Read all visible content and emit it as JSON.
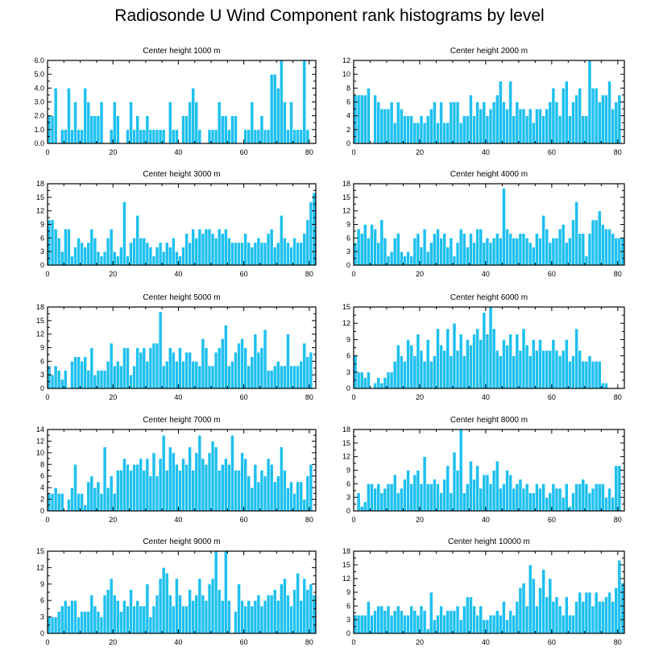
{
  "title": "Radiosonde U Wind Component rank histograms by level",
  "colors": {
    "bar": "#1ec0f0",
    "axis": "#000000"
  },
  "chart_data": [
    {
      "type": "bar",
      "title": "Center height 1000 m",
      "xlim": [
        0,
        82
      ],
      "ylim": [
        0,
        6
      ],
      "xticks": [
        "0",
        "20",
        "40",
        "60",
        "80"
      ],
      "yticks": [
        "0.0",
        "1.0",
        "2.0",
        "3.0",
        "4.0",
        "5.0",
        "6.0"
      ],
      "values": [
        2,
        2,
        4,
        0,
        1,
        1,
        4,
        1,
        3,
        1,
        1,
        4,
        3,
        2,
        2,
        2,
        3,
        0,
        0,
        1,
        3,
        2,
        0,
        0,
        1,
        3,
        1,
        2,
        1,
        1,
        2,
        1,
        1,
        1,
        1,
        1,
        0,
        3,
        1,
        1,
        0,
        2,
        2,
        3,
        4,
        3,
        1,
        0,
        0,
        1,
        1,
        1,
        3,
        2,
        2,
        1,
        2,
        2,
        0,
        0,
        1,
        1,
        3,
        1,
        1,
        2,
        1,
        1,
        5,
        5,
        4,
        6,
        3,
        1,
        3,
        1,
        1,
        1,
        6,
        1,
        0
      ]
    },
    {
      "type": "bar",
      "title": "Center height 2000 m",
      "xlim": [
        0,
        82
      ],
      "ylim": [
        0,
        12
      ],
      "xticks": [
        "0",
        "20",
        "40",
        "60",
        "80"
      ],
      "yticks": [
        "0",
        "2",
        "4",
        "6",
        "8",
        "10",
        "12"
      ],
      "values": [
        7,
        7,
        7,
        7,
        8,
        0,
        7,
        6,
        5,
        5,
        5,
        6,
        3,
        6,
        5,
        4,
        4,
        4,
        3,
        3,
        4,
        3,
        4,
        5,
        6,
        3,
        6,
        3,
        3,
        6,
        6,
        6,
        3,
        4,
        4,
        7,
        4,
        6,
        5,
        6,
        4,
        5,
        6,
        7,
        9,
        6,
        5,
        9,
        4,
        6,
        5,
        5,
        4,
        5,
        3,
        5,
        5,
        4,
        5,
        6,
        8,
        6,
        4,
        8,
        9,
        4,
        6,
        7,
        8,
        4,
        4,
        12,
        8,
        8,
        6,
        7,
        7,
        9,
        5,
        6,
        7
      ]
    },
    {
      "type": "bar",
      "title": "Center height 3000 m",
      "xlim": [
        0,
        82
      ],
      "ylim": [
        0,
        18
      ],
      "xticks": [
        "0",
        "20",
        "40",
        "60",
        "80"
      ],
      "yticks": [
        "0",
        "3",
        "6",
        "9",
        "12",
        "15",
        "18"
      ],
      "values": [
        10,
        10,
        8,
        6,
        3,
        8,
        8,
        2,
        4,
        6,
        5,
        4,
        5,
        8,
        6,
        3,
        2,
        3,
        6,
        8,
        3,
        2,
        4,
        14,
        2,
        5,
        6,
        11,
        6,
        6,
        5,
        4,
        2,
        4,
        5,
        3,
        5,
        4,
        6,
        3,
        2,
        4,
        7,
        5,
        8,
        6,
        8,
        7,
        8,
        8,
        7,
        6,
        8,
        7,
        8,
        6,
        5,
        5,
        5,
        5,
        7,
        5,
        4,
        5,
        6,
        5,
        5,
        7,
        8,
        4,
        5,
        11,
        6,
        5,
        4,
        6,
        5,
        5,
        7,
        10,
        14,
        16
      ]
    },
    {
      "type": "bar",
      "title": "Center height 4000 m",
      "xlim": [
        0,
        82
      ],
      "ylim": [
        0,
        18
      ],
      "xticks": [
        "0",
        "20",
        "40",
        "60",
        "80"
      ],
      "yticks": [
        "0",
        "3",
        "6",
        "9",
        "12",
        "15",
        "18"
      ],
      "values": [
        5,
        8,
        7,
        9,
        6,
        9,
        8,
        5,
        10,
        6,
        2,
        3,
        6,
        7,
        3,
        2,
        3,
        2,
        6,
        7,
        4,
        8,
        3,
        5,
        7,
        8,
        6,
        7,
        4,
        6,
        2,
        5,
        8,
        7,
        4,
        7,
        5,
        8,
        8,
        5,
        6,
        5,
        6,
        7,
        6,
        17,
        8,
        7,
        6,
        6,
        7,
        7,
        6,
        5,
        4,
        7,
        6,
        11,
        8,
        5,
        6,
        6,
        8,
        9,
        5,
        6,
        10,
        14,
        7,
        7,
        2,
        7,
        10,
        10,
        12,
        9,
        8,
        8,
        7,
        6,
        6,
        6
      ]
    },
    {
      "type": "bar",
      "title": "Center height 5000 m",
      "xlim": [
        0,
        82
      ],
      "ylim": [
        0,
        18
      ],
      "xticks": [
        "0",
        "20",
        "40",
        "60",
        "80"
      ],
      "yticks": [
        "0",
        "3",
        "6",
        "9",
        "12",
        "15",
        "18"
      ],
      "values": [
        5,
        3,
        5,
        4,
        2,
        4,
        0,
        6,
        7,
        7,
        6,
        7,
        4,
        9,
        3,
        4,
        4,
        4,
        6,
        10,
        5,
        6,
        5,
        9,
        9,
        3,
        5,
        9,
        8,
        9,
        6,
        9,
        10,
        10,
        17,
        5,
        6,
        9,
        8,
        6,
        9,
        6,
        8,
        8,
        6,
        6,
        5,
        11,
        9,
        5,
        5,
        8,
        9,
        11,
        14,
        5,
        6,
        8,
        10,
        11,
        9,
        5,
        7,
        12,
        8,
        9,
        13,
        4,
        4,
        5,
        6,
        5,
        5,
        12,
        5,
        5,
        5,
        6,
        10,
        7,
        8
      ]
    },
    {
      "type": "bar",
      "title": "Center height 6000 m",
      "xlim": [
        0,
        82
      ],
      "ylim": [
        0,
        15
      ],
      "xticks": [
        "0",
        "20",
        "40",
        "60",
        "80"
      ],
      "yticks": [
        "0",
        "3",
        "6",
        "9",
        "12",
        "15"
      ],
      "values": [
        6,
        3,
        3,
        2,
        3,
        0,
        1,
        2,
        1,
        2,
        3,
        3,
        5,
        8,
        6,
        5,
        9,
        8,
        6,
        10,
        7,
        5,
        9,
        5,
        6,
        11,
        8,
        7,
        11,
        6,
        12,
        7,
        10,
        6,
        9,
        8,
        10,
        11,
        9,
        14,
        10,
        15,
        11,
        7,
        6,
        9,
        8,
        10,
        6,
        10,
        7,
        11,
        8,
        6,
        9,
        7,
        9,
        7,
        7,
        7,
        9,
        7,
        6,
        7,
        9,
        5,
        6,
        11,
        7,
        5,
        5,
        6,
        5,
        5,
        5,
        1,
        1
      ]
    },
    {
      "type": "bar",
      "title": "Center height 7000 m",
      "xlim": [
        0,
        82
      ],
      "ylim": [
        0,
        14
      ],
      "xticks": [
        "0",
        "20",
        "40",
        "60",
        "80"
      ],
      "yticks": [
        "0",
        "2",
        "4",
        "6",
        "8",
        "10",
        "12",
        "14"
      ],
      "values": [
        3,
        3,
        4,
        3,
        3,
        0,
        2,
        4,
        8,
        3,
        3,
        1,
        5,
        6,
        4,
        5,
        3,
        11,
        4,
        6,
        3,
        7,
        7,
        9,
        8,
        7,
        8,
        8,
        9,
        7,
        9,
        6,
        10,
        6,
        9,
        13,
        7,
        11,
        10,
        8,
        7,
        9,
        8,
        11,
        7,
        10,
        13,
        9,
        8,
        10,
        12,
        11,
        7,
        8,
        9,
        8,
        13,
        7,
        7,
        10,
        9,
        6,
        4,
        8,
        5,
        7,
        6,
        9,
        8,
        5,
        6,
        11,
        7,
        4,
        5,
        3,
        5,
        5,
        2,
        6,
        8
      ]
    },
    {
      "type": "bar",
      "title": "Center height 8000 m",
      "xlim": [
        0,
        82
      ],
      "ylim": [
        0,
        18
      ],
      "xticks": [
        "0",
        "20",
        "40",
        "60",
        "80"
      ],
      "yticks": [
        "0",
        "3",
        "6",
        "9",
        "12",
        "15",
        "18"
      ],
      "values": [
        0,
        4,
        1,
        2,
        6,
        6,
        5,
        6,
        4,
        5,
        6,
        6,
        8,
        4,
        5,
        7,
        9,
        6,
        8,
        9,
        6,
        12,
        6,
        6,
        7,
        6,
        4,
        7,
        10,
        4,
        13,
        9,
        18,
        4,
        6,
        11,
        7,
        10,
        5,
        8,
        8,
        6,
        9,
        11,
        5,
        6,
        9,
        8,
        5,
        6,
        7,
        5,
        6,
        4,
        4,
        6,
        5,
        6,
        3,
        4,
        6,
        5,
        5,
        3,
        6,
        1,
        4,
        6,
        6,
        7,
        6,
        4,
        5,
        6,
        6,
        6,
        3,
        5,
        3,
        10,
        10
      ]
    },
    {
      "type": "bar",
      "title": "Center height 9000 m",
      "xlim": [
        0,
        82
      ],
      "ylim": [
        0,
        15
      ],
      "xticks": [
        "0",
        "20",
        "40",
        "60",
        "80"
      ],
      "yticks": [
        "0",
        "3",
        "6",
        "9",
        "12",
        "15"
      ],
      "values": [
        3,
        3,
        3,
        4,
        5,
        6,
        5,
        6,
        6,
        3,
        4,
        4,
        4,
        7,
        5,
        4,
        3,
        7,
        8,
        10,
        7,
        6,
        4,
        6,
        5,
        8,
        5,
        6,
        5,
        5,
        9,
        3,
        5,
        7,
        10,
        12,
        11,
        7,
        5,
        10,
        7,
        5,
        5,
        8,
        6,
        7,
        10,
        7,
        6,
        9,
        10,
        15,
        8,
        6,
        15,
        6,
        0,
        4,
        9,
        6,
        5,
        6,
        5,
        6,
        7,
        5,
        6,
        7,
        7,
        8,
        6,
        9,
        10,
        7,
        5,
        8,
        11,
        6,
        10,
        8,
        9,
        7
      ]
    },
    {
      "type": "bar",
      "title": "Center height 10000 m",
      "xlim": [
        0,
        82
      ],
      "ylim": [
        0,
        18
      ],
      "xticks": [
        "0",
        "20",
        "40",
        "60",
        "80"
      ],
      "yticks": [
        "0",
        "3",
        "6",
        "9",
        "12",
        "15",
        "18"
      ],
      "values": [
        4,
        4,
        4,
        4,
        7,
        4,
        5,
        6,
        6,
        5,
        6,
        4,
        5,
        6,
        5,
        4,
        4,
        6,
        5,
        4,
        6,
        5,
        1,
        9,
        3,
        4,
        6,
        4,
        5,
        5,
        5,
        6,
        3,
        6,
        8,
        8,
        6,
        4,
        6,
        3,
        3,
        4,
        4,
        5,
        4,
        7,
        3,
        5,
        4,
        7,
        10,
        11,
        6,
        15,
        12,
        6,
        10,
        14,
        8,
        12,
        7,
        8,
        6,
        4,
        8,
        4,
        4,
        7,
        9,
        7,
        9,
        9,
        6,
        9,
        7,
        7,
        8,
        9,
        7,
        10,
        16,
        11
      ]
    }
  ]
}
